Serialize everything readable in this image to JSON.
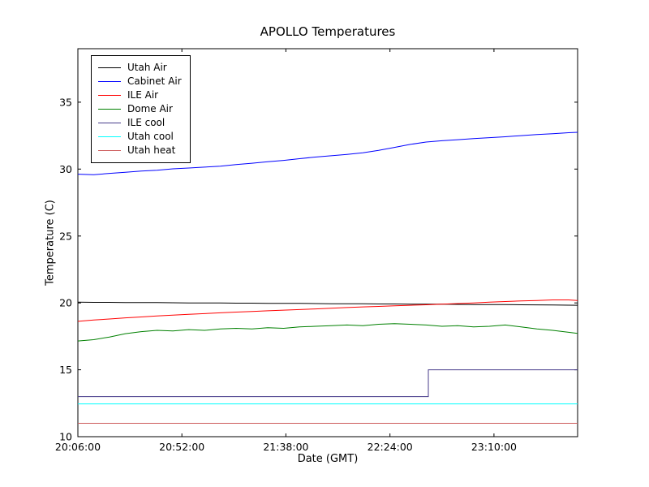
{
  "chart_data": {
    "type": "line",
    "title": "APOLLO Temperatures",
    "xlabel": "Date (GMT)",
    "ylabel": "Temperature (C)",
    "grid": false,
    "legend_position": "upper left",
    "x_unit": "minutes after 20:06:00 GMT",
    "xlim": [
      0,
      221
    ],
    "ylim": [
      10,
      39
    ],
    "xticks": [
      {
        "pos": 0,
        "label": "20:06:00"
      },
      {
        "pos": 46,
        "label": "20:52:00"
      },
      {
        "pos": 92,
        "label": "21:38:00"
      },
      {
        "pos": 138,
        "label": "22:24:00"
      },
      {
        "pos": 184,
        "label": "23:10:00"
      }
    ],
    "yticks": [
      {
        "pos": 10,
        "label": "10"
      },
      {
        "pos": 15,
        "label": "15"
      },
      {
        "pos": 20,
        "label": "20"
      },
      {
        "pos": 25,
        "label": "25"
      },
      {
        "pos": 30,
        "label": "30"
      },
      {
        "pos": 35,
        "label": "35"
      }
    ],
    "series": [
      {
        "name": "Utah Air",
        "slug": "utah-air",
        "color": "#000000",
        "x": [
          0,
          7,
          14,
          21,
          28,
          35,
          42,
          49,
          56,
          63,
          70,
          77,
          84,
          91,
          98,
          105,
          112,
          119,
          126,
          133,
          140,
          147,
          154,
          161,
          168,
          175,
          182,
          189,
          196,
          203,
          210,
          217,
          221
        ],
        "y": [
          20.05,
          20.04,
          20.04,
          20.03,
          20.02,
          20.02,
          20.01,
          20.0,
          20.0,
          19.99,
          19.98,
          19.98,
          19.97,
          19.96,
          19.96,
          19.95,
          19.94,
          19.94,
          19.93,
          19.92,
          19.92,
          19.91,
          19.9,
          19.9,
          19.89,
          19.88,
          19.87,
          19.87,
          19.86,
          19.85,
          19.84,
          19.83,
          19.82
        ]
      },
      {
        "name": "Cabinet Air",
        "slug": "cabinet-air",
        "color": "#0000ff",
        "x": [
          0,
          7,
          14,
          21,
          28,
          35,
          42,
          49,
          56,
          63,
          70,
          77,
          84,
          91,
          98,
          105,
          112,
          119,
          126,
          133,
          140,
          147,
          154,
          161,
          168,
          175,
          182,
          189,
          196,
          203,
          210,
          217,
          221
        ],
        "y": [
          29.62,
          29.58,
          29.68,
          29.76,
          29.85,
          29.92,
          30.02,
          30.08,
          30.15,
          30.22,
          30.34,
          30.44,
          30.55,
          30.65,
          30.78,
          30.9,
          31.0,
          31.1,
          31.22,
          31.4,
          31.62,
          31.85,
          32.02,
          32.12,
          32.2,
          32.28,
          32.35,
          32.42,
          32.5,
          32.58,
          32.65,
          32.72,
          32.75
        ]
      },
      {
        "name": "ILE Air",
        "slug": "ile-air",
        "color": "#ff0000",
        "x": [
          0,
          7,
          14,
          21,
          28,
          35,
          42,
          49,
          56,
          63,
          70,
          77,
          84,
          91,
          98,
          105,
          112,
          119,
          126,
          133,
          140,
          147,
          154,
          161,
          168,
          175,
          182,
          189,
          196,
          203,
          210,
          217,
          221
        ],
        "y": [
          18.62,
          18.72,
          18.8,
          18.88,
          18.95,
          19.02,
          19.08,
          19.14,
          19.2,
          19.26,
          19.31,
          19.36,
          19.41,
          19.46,
          19.5,
          19.55,
          19.6,
          19.65,
          19.7,
          19.74,
          19.78,
          19.82,
          19.86,
          19.9,
          19.95,
          20.0,
          20.05,
          20.1,
          20.15,
          20.18,
          20.22,
          20.22,
          20.18
        ]
      },
      {
        "name": "Dome Air",
        "slug": "dome-air",
        "color": "#008000",
        "x": [
          0,
          7,
          14,
          21,
          28,
          35,
          42,
          49,
          56,
          63,
          70,
          77,
          84,
          91,
          98,
          105,
          112,
          119,
          126,
          133,
          140,
          147,
          154,
          161,
          168,
          175,
          182,
          189,
          196,
          203,
          210,
          217,
          221
        ],
        "y": [
          17.15,
          17.25,
          17.45,
          17.7,
          17.85,
          17.95,
          17.9,
          18.0,
          17.95,
          18.05,
          18.1,
          18.05,
          18.15,
          18.1,
          18.2,
          18.25,
          18.3,
          18.35,
          18.3,
          18.4,
          18.45,
          18.4,
          18.35,
          18.25,
          18.3,
          18.2,
          18.25,
          18.35,
          18.2,
          18.05,
          17.95,
          17.8,
          17.72
        ]
      },
      {
        "name": "ILE cool",
        "slug": "ile-cool",
        "color": "#483d8b",
        "x": [
          0,
          155,
          155,
          221
        ],
        "y": [
          13.0,
          13.0,
          15.0,
          15.0
        ]
      },
      {
        "name": "Utah cool",
        "slug": "utah-cool",
        "color": "#00ffff",
        "x": [
          0,
          221
        ],
        "y": [
          12.45,
          12.45
        ]
      },
      {
        "name": "Utah heat",
        "slug": "utah-heat",
        "color": "#cd5c5c",
        "x": [
          0,
          221
        ],
        "y": [
          11.0,
          11.0
        ]
      }
    ]
  }
}
